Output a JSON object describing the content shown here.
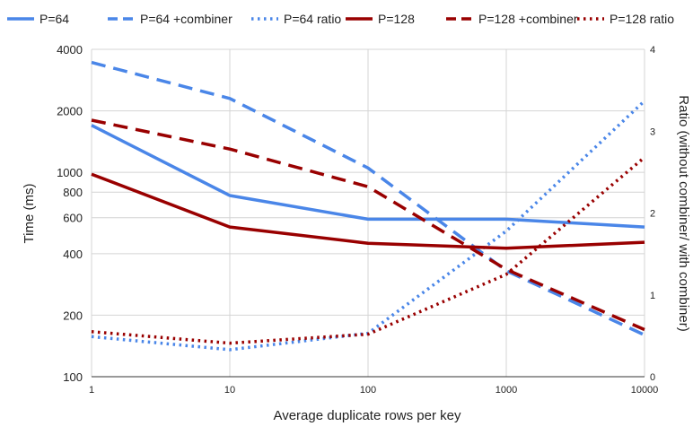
{
  "chart_data": {
    "type": "line",
    "x_scale": "log",
    "y_scale": "log",
    "xlabel": "Average duplicate rows per key",
    "ylabel": "Time (ms)",
    "y2label": "Ratio (without combiner/ with combiner)",
    "x": [
      1,
      10,
      100,
      1000,
      10000
    ],
    "x_ticks": [
      "1",
      "10",
      "100",
      "1000",
      "10000"
    ],
    "ylim": [
      100,
      4000
    ],
    "y_ticks": [
      100,
      200,
      400,
      600,
      800,
      1000,
      2000,
      4000
    ],
    "y2lim": [
      0,
      4
    ],
    "y2_ticks": [
      0,
      1,
      2,
      3,
      4
    ],
    "grid": true,
    "legend_position": "top",
    "series": [
      {
        "name": "P=64",
        "axis": "left",
        "style": "solid",
        "color": "#4a86e8",
        "values": [
          1700,
          770,
          590,
          590,
          540
        ]
      },
      {
        "name": "P=64 +combiner",
        "axis": "left",
        "style": "dashed",
        "color": "#4a86e8",
        "values": [
          3450,
          2300,
          1050,
          330,
          160
        ]
      },
      {
        "name": "P=64 ratio",
        "axis": "right",
        "style": "dotted",
        "color": "#4a86e8",
        "values": [
          0.49,
          0.33,
          0.53,
          1.78,
          3.37
        ]
      },
      {
        "name": "P=128",
        "axis": "left",
        "style": "solid",
        "color": "#990000",
        "values": [
          980,
          540,
          450,
          425,
          455
        ]
      },
      {
        "name": "P=128 +combiner",
        "axis": "left",
        "style": "dashed",
        "color": "#990000",
        "values": [
          1800,
          1300,
          850,
          335,
          170
        ]
      },
      {
        "name": "P=128 ratio",
        "axis": "right",
        "style": "dotted",
        "color": "#990000",
        "values": [
          0.55,
          0.41,
          0.52,
          1.25,
          2.68
        ]
      }
    ]
  }
}
